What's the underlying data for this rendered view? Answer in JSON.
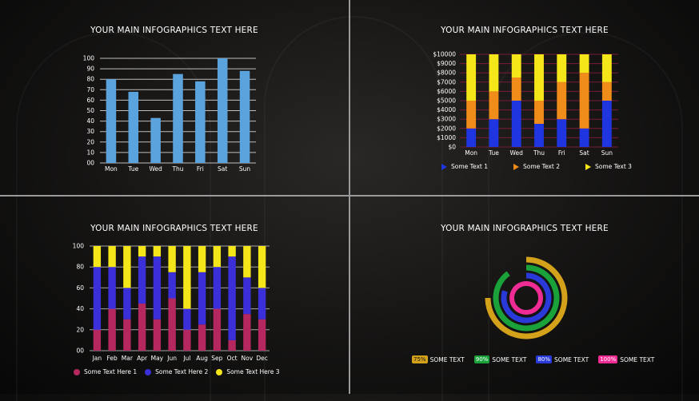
{
  "panels": [
    {
      "title": "YOUR MAIN INFOGRAPHICS TEXT HERE",
      "chart_data": {
        "type": "bar",
        "categories": [
          "Mon",
          "Tue",
          "Wed",
          "Thu",
          "Fri",
          "Sat",
          "Sun"
        ],
        "values": [
          80,
          68,
          43,
          85,
          78,
          100,
          88
        ],
        "yticks": [
          "00",
          "10",
          "20",
          "30",
          "40",
          "50",
          "60",
          "70",
          "80",
          "90",
          "100"
        ],
        "ylim": [
          0,
          100
        ],
        "color": "#5ba3dc",
        "grid": true
      }
    },
    {
      "title": "YOUR MAIN INFOGRAPHICS TEXT HERE",
      "chart_data": {
        "type": "bar",
        "stacked": true,
        "categories": [
          "Mon",
          "Tue",
          "Wed",
          "Thu",
          "Fri",
          "Sat",
          "Sun"
        ],
        "series": [
          {
            "name": "Some Text  1",
            "color": "#1f35e0",
            "values": [
              2000,
              3000,
              5000,
              2500,
              3000,
              2000,
              5000
            ]
          },
          {
            "name": "Some Text  2",
            "color": "#f08c1a",
            "values": [
              3000,
              3000,
              2500,
              2500,
              4000,
              6000,
              2000
            ]
          },
          {
            "name": "Some Text  3",
            "color": "#f5e61a",
            "values": [
              5000,
              4000,
              2500,
              5000,
              3000,
              2000,
              3000
            ]
          }
        ],
        "yticks": [
          "$0",
          "$1000",
          "$2000",
          "$3000",
          "$4000",
          "$5000",
          "$6000",
          "$7000",
          "$8000",
          "$9000",
          "$10000"
        ],
        "ylim": [
          0,
          10000
        ],
        "gridColor": "#7a1a3a",
        "legend": "bottom"
      }
    },
    {
      "title": "YOUR MAIN INFOGRAPHICS TEXT HERE",
      "chart_data": {
        "type": "bar",
        "stacked": true,
        "categories": [
          "Jan",
          "Feb",
          "Mar",
          "Apr",
          "May",
          "Jun",
          "Jul",
          "Aug",
          "Sep",
          "Oct",
          "Nov",
          "Dec"
        ],
        "series": [
          {
            "name": "Some Text Here  1",
            "color": "#b5285f",
            "values": [
              20,
              40,
              30,
              45,
              30,
              50,
              20,
              25,
              40,
              10,
              35,
              30
            ]
          },
          {
            "name": "Some Text Here  2",
            "color": "#3a2fd8",
            "values": [
              60,
              40,
              30,
              45,
              60,
              25,
              20,
              50,
              40,
              80,
              35,
              30
            ]
          },
          {
            "name": "Some Text Here  3",
            "color": "#f5e61a",
            "values": [
              20,
              20,
              40,
              10,
              10,
              25,
              60,
              25,
              20,
              10,
              30,
              40
            ]
          }
        ],
        "yticks": [
          "00",
          "20",
          "40",
          "60",
          "80",
          "100"
        ],
        "ylim": [
          0,
          100
        ],
        "gridColor": "#c8c8c8",
        "legend": "bottom"
      }
    },
    {
      "title": "YOUR MAIN INFOGRAPHICS TEXT HERE",
      "chart_data": {
        "type": "radial-bar",
        "series": [
          {
            "label": "75%",
            "name": "SOME TEXT",
            "value": 75,
            "color": "#d4a21a"
          },
          {
            "label": "90%",
            "name": "SOME TEXT",
            "value": 90,
            "color": "#1aa13a"
          },
          {
            "label": "80%",
            "name": "SOME TEXT",
            "value": 80,
            "color": "#2a3ad8"
          },
          {
            "label": "100%",
            "name": "SOME TEXT",
            "value": 100,
            "color": "#ee2c93"
          }
        ],
        "legend": "bottom"
      }
    }
  ]
}
